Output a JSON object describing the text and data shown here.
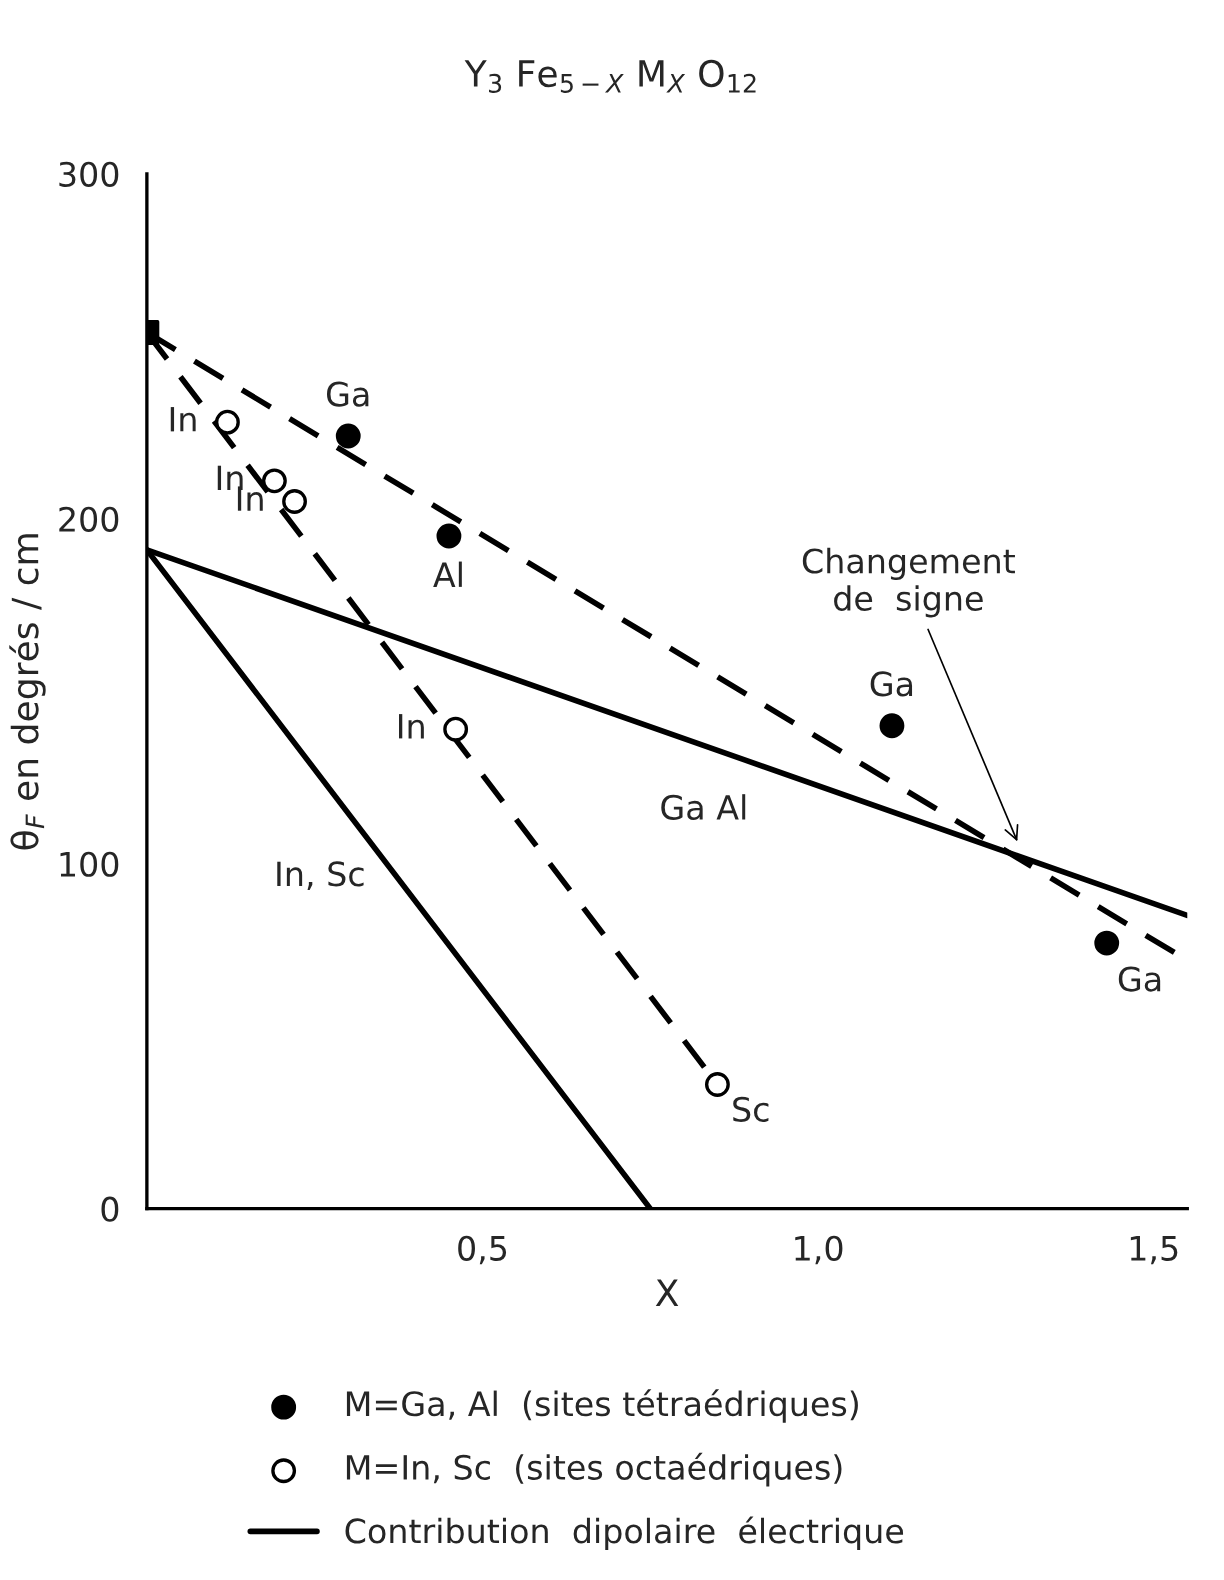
{
  "chart_data": {
    "type": "scatter",
    "title": "Y$_{3}$ Fe$_{5−X}$ M$_{X}$ O$_{12}$",
    "xlabel": "X",
    "ylabel": "θ$_{F}$ en degrés / cm",
    "xlim": [
      0,
      1.55
    ],
    "ylim": [
      0,
      300
    ],
    "xticks": [
      {
        "value": 0.5,
        "label": "0,5"
      },
      {
        "value": 1.0,
        "label": "1,0"
      },
      {
        "value": 1.5,
        "label": "1,5"
      }
    ],
    "yticks": [
      0,
      100,
      200,
      300
    ],
    "grid": false,
    "legend": "bottom",
    "series": [
      {
        "name": "M=Ga, Al  (sites tétraédriques)",
        "marker": "circle",
        "color": "#000000",
        "x": [
          0.3,
          0.45,
          1.11,
          1.43
        ],
        "values": [
          224,
          195,
          140,
          77
        ]
      },
      {
        "name": "M=In, Sc  (sites octaédriques)",
        "marker": "circle",
        "color": "#ffffff",
        "x": [
          0.12,
          0.19,
          0.22,
          0.46,
          0.85
        ],
        "values": [
          228,
          211,
          205,
          139,
          36
        ]
      },
      {
        "name": "Contribution  dipolaire  électrique",
        "type": "line",
        "line_style": "solid",
        "color": "#000000",
        "x": [
          0,
          1.55
        ],
        "values": [
          191,
          85
        ]
      },
      {
        "type": "line",
        "line_style": "solid",
        "color": "#000000",
        "x": [
          0,
          0.75
        ],
        "values": [
          191,
          0
        ]
      },
      {
        "type": "line",
        "line_style": "dashed",
        "color": "#000000",
        "x": [
          0,
          1.55
        ],
        "values": [
          254,
          72
        ]
      },
      {
        "type": "line",
        "line_style": "dashed",
        "color": "#000000",
        "x": [
          0,
          0.85
        ],
        "values": [
          254,
          36
        ]
      },
      {
        "marker": "square",
        "color": "#000000",
        "x": [
          0
        ],
        "values": [
          254
        ]
      }
    ],
    "annotations": [
      {
        "text": "In",
        "x": 0.12,
        "y": 228
      },
      {
        "text": "In",
        "x": 0.19,
        "y": 211
      },
      {
        "text": "In",
        "x": 0.22,
        "y": 205
      },
      {
        "text": "In",
        "x": 0.46,
        "y": 139
      },
      {
        "text": "Sc",
        "x": 0.85,
        "y": 36
      },
      {
        "text": "Ga",
        "x": 0.3,
        "y": 224
      },
      {
        "text": "Al",
        "x": 0.45,
        "y": 195
      },
      {
        "text": "Ga",
        "x": 1.11,
        "y": 140
      },
      {
        "text": "Ga",
        "x": 1.43,
        "y": 77
      },
      {
        "text": "Ga Al",
        "x": 0.86,
        "y": 132.2
      },
      {
        "text": "In, Sc",
        "x": 0.33,
        "y": 106.96
      },
      {
        "text": "Changement\nde  signe",
        "x": 1.3,
        "y": 105
      }
    ]
  }
}
